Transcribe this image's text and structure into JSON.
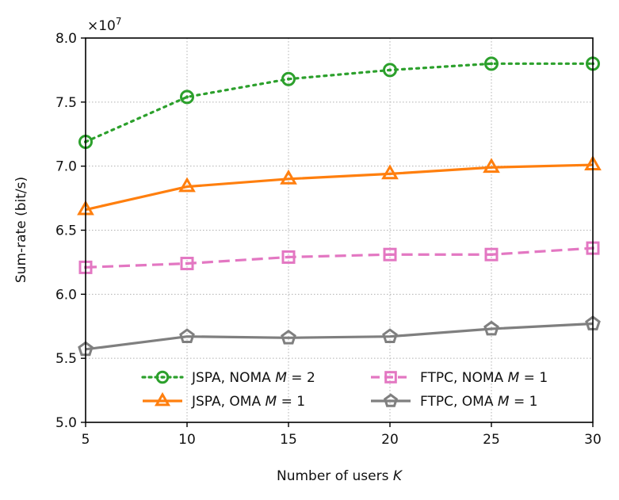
{
  "chart_data": {
    "type": "line",
    "x": [
      5,
      10,
      15,
      20,
      25,
      30
    ],
    "xlabel": "Number of users K",
    "ylabel": "Sum-rate (bit/s)",
    "y_multiplier": "×10⁷",
    "xlim": [
      5,
      30
    ],
    "ylim": [
      5.0,
      8.0
    ],
    "x_ticks": [
      "5",
      "10",
      "15",
      "20",
      "25",
      "30"
    ],
    "y_ticks": [
      "5.0",
      "5.5",
      "6.0",
      "6.5",
      "7.0",
      "7.5",
      "8.0"
    ],
    "grid": true,
    "legend_position": "lower-right",
    "series": [
      {
        "name": "JSPA, NOMA M = 2",
        "values": [
          7.19,
          7.54,
          7.68,
          7.75,
          7.8,
          7.8
        ],
        "color": "#2ca02c",
        "marker": "circle",
        "line_style": "dotted"
      },
      {
        "name": "JSPA, OMA M = 1",
        "values": [
          6.66,
          6.84,
          6.9,
          6.94,
          6.99,
          7.01
        ],
        "color": "#ff7f0e",
        "marker": "triangle",
        "line_style": "solid"
      },
      {
        "name": "FTPC, NOMA M = 1",
        "values": [
          6.21,
          6.24,
          6.29,
          6.31,
          6.31,
          6.36
        ],
        "color": "#e377c2",
        "marker": "square",
        "line_style": "dashed"
      },
      {
        "name": "FTPC, OMA M = 1",
        "values": [
          5.57,
          5.67,
          5.66,
          5.67,
          5.73,
          5.77
        ],
        "color": "#7f7f7f",
        "marker": "pentagon",
        "line_style": "solid"
      }
    ]
  }
}
